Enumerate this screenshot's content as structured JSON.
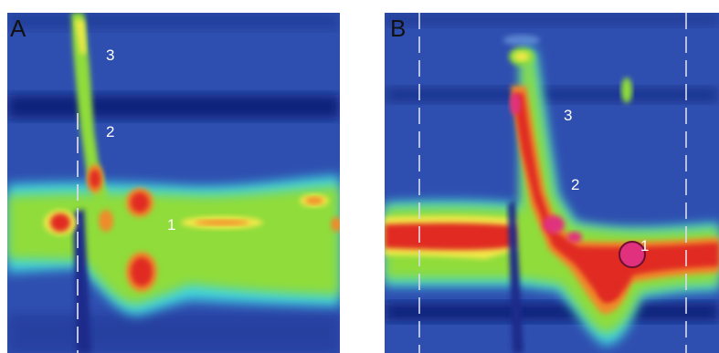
{
  "panels": [
    {
      "id": "A",
      "label": "A",
      "markers": [
        "3",
        "2",
        "1"
      ]
    },
    {
      "id": "B",
      "label": "B",
      "markers": [
        "3",
        "2",
        "1"
      ]
    }
  ],
  "colors": {
    "background": "#2f4fb0",
    "deep_band": "#0e1f78",
    "cyan": "#3fd4e0",
    "green": "#8fdc3a",
    "yellow": "#f2e84a",
    "orange": "#f08a2a",
    "red": "#e02a20",
    "magenta": "#e0307e",
    "dashed_line": "#d9dde8",
    "marker_text": "#ffffff"
  }
}
